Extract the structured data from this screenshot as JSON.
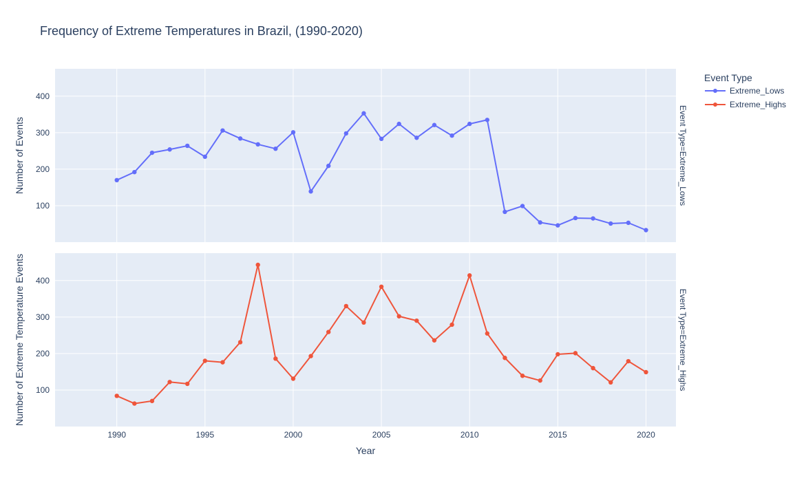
{
  "chart_data": {
    "type": "line",
    "title": "Frequency of Extreme Temperatures in Brazil, (1990-2020)",
    "xlabel": "Year",
    "ylabel_top": "Number of Events",
    "ylabel_bottom": "Number of Extreme Temperature Events",
    "x": [
      1990,
      1991,
      1992,
      1993,
      1994,
      1995,
      1996,
      1997,
      1998,
      1999,
      2000,
      2001,
      2002,
      2003,
      2004,
      2005,
      2006,
      2007,
      2008,
      2009,
      2010,
      2011,
      2012,
      2013,
      2014,
      2015,
      2016,
      2017,
      2018,
      2019,
      2020
    ],
    "x_ticks": [
      "1990",
      "1995",
      "2000",
      "2005",
      "2010",
      "2015",
      "2020"
    ],
    "y_ticks": [
      "100",
      "200",
      "300",
      "400"
    ],
    "xlim": [
      1986.5,
      2021.7
    ],
    "ylim": [
      0,
      475
    ],
    "grid": true,
    "legend": {
      "title": "Event Type",
      "placement": "top-right"
    },
    "series": [
      {
        "name": "Extreme_Lows",
        "facet_label": "Event Type=Extreme_Lows",
        "color": "#636efa",
        "values": [
          170,
          192,
          245,
          254,
          264,
          234,
          306,
          284,
          268,
          256,
          301,
          139,
          209,
          298,
          353,
          283,
          324,
          286,
          321,
          292,
          324,
          335,
          83,
          99,
          54,
          46,
          66,
          65,
          51,
          53,
          33
        ]
      },
      {
        "name": "Extreme_Highs",
        "facet_label": "Event Type=Extreme_Highs",
        "color": "#ef553b",
        "values": [
          84,
          63,
          70,
          122,
          117,
          180,
          176,
          231,
          443,
          186,
          131,
          193,
          259,
          330,
          285,
          383,
          302,
          290,
          236,
          279,
          414,
          255,
          188,
          139,
          126,
          198,
          201,
          160,
          121,
          179,
          149
        ]
      }
    ]
  }
}
